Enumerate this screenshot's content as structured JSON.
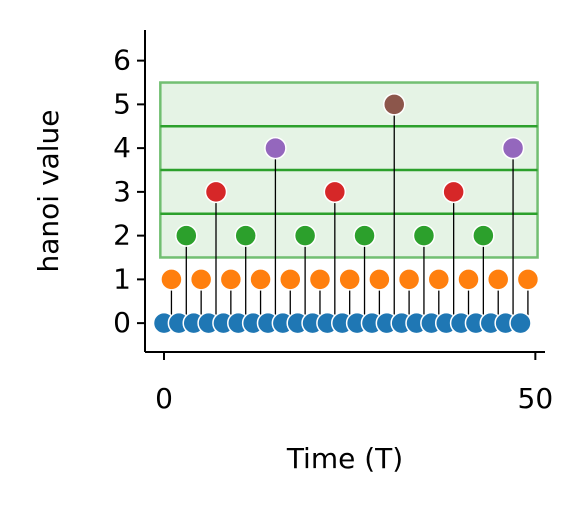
{
  "chart_data": {
    "type": "stem",
    "xlabel": "Time (T)",
    "ylabel": "hanoi value",
    "xlim": [
      -2.56,
      51.3
    ],
    "xticks": [
      0,
      50
    ],
    "ylim": [
      -0.66,
      6.7
    ],
    "yticks": [
      0,
      1,
      2,
      3,
      4,
      5,
      6
    ],
    "stem_color": "#000000",
    "span": {
      "xlim": [
        -0.5,
        50.3
      ],
      "ylim": [
        1.5,
        5.5
      ],
      "color": "#2ca02c"
    },
    "hlines": [
      2.5,
      3.5,
      4.5
    ],
    "series": [
      {
        "color": "#1f77b4",
        "x": [
          0,
          2,
          4,
          6,
          8,
          10,
          12,
          14,
          16,
          18,
          20,
          22,
          24,
          26,
          28,
          30,
          32,
          34,
          36,
          38,
          40,
          42,
          44,
          46,
          48
        ],
        "values": [
          0,
          0,
          0,
          0,
          0,
          0,
          0,
          0,
          0,
          0,
          0,
          0,
          0,
          0,
          0,
          0,
          0,
          0,
          0,
          0,
          0,
          0,
          0,
          0,
          0
        ]
      },
      {
        "color": "#ff7f0e",
        "x": [
          1,
          5,
          9,
          13,
          17,
          21,
          25,
          29,
          33,
          37,
          41,
          45,
          49
        ],
        "values": [
          1,
          1,
          1,
          1,
          1,
          1,
          1,
          1,
          1,
          1,
          1,
          1,
          1
        ]
      },
      {
        "color": "#2ca02c",
        "x": [
          3,
          11,
          19,
          27,
          35,
          43
        ],
        "values": [
          2,
          2,
          2,
          2,
          2,
          2
        ]
      },
      {
        "color": "#d62728",
        "x": [
          7,
          23,
          39
        ],
        "values": [
          3,
          3,
          3
        ]
      },
      {
        "color": "#9467bd",
        "x": [
          15,
          47
        ],
        "values": [
          4,
          4
        ]
      },
      {
        "color": "#8c564b",
        "x": [
          31
        ],
        "values": [
          5
        ]
      }
    ]
  }
}
